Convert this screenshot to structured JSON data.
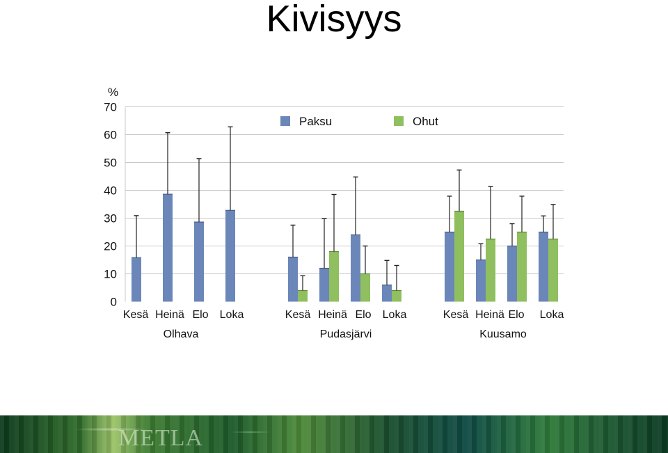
{
  "title": "Kivisyys",
  "footer": {
    "logo_text": "METLA"
  },
  "colors": {
    "paksu": "#6b86b8",
    "ohut": "#8fbf5e",
    "grid": "#c8c8c8",
    "error": "#222222"
  },
  "chart_data": {
    "type": "bar",
    "unit_label": "%",
    "ylim": [
      0,
      70
    ],
    "y_ticks": [
      0,
      10,
      20,
      30,
      40,
      50,
      60,
      70
    ],
    "grid": true,
    "legend_position": "top",
    "error_bars": true,
    "series": [
      {
        "name": "Paksu",
        "color": "#6b86b8"
      },
      {
        "name": "Ohut",
        "color": "#8fbf5e"
      }
    ],
    "groups": [
      {
        "label": "Olhava",
        "months": [
          "Kesä",
          "Heinä",
          "Elo",
          "Loka"
        ],
        "paksu": [
          15.8,
          38.6,
          28.6,
          32.8
        ],
        "paksu_err_top": [
          30.9,
          60.7,
          51.4,
          62.8
        ],
        "ohut": [
          null,
          null,
          null,
          null
        ],
        "ohut_err_top": [
          null,
          null,
          null,
          null
        ]
      },
      {
        "label": "Pudasjärvi",
        "months": [
          "Kesä",
          "Heinä",
          "Elo",
          "Loka"
        ],
        "paksu": [
          16.0,
          12.0,
          24.0,
          6.0
        ],
        "paksu_err_top": [
          27.5,
          29.8,
          44.8,
          14.8
        ],
        "ohut": [
          4.0,
          18.0,
          10.0,
          4.0
        ],
        "ohut_err_top": [
          9.3,
          38.5,
          20.0,
          13.0
        ]
      },
      {
        "label": "Kuusamo",
        "months": [
          "Kesä",
          "Heinä",
          "Elo",
          "Loka"
        ],
        "paksu": [
          25.0,
          15.0,
          20.0,
          25.0
        ],
        "paksu_err_top": [
          37.9,
          20.8,
          28.0,
          30.8
        ],
        "ohut": [
          32.5,
          22.5,
          25.0,
          22.5
        ],
        "ohut_err_top": [
          47.3,
          41.4,
          37.9,
          34.9
        ]
      }
    ]
  }
}
